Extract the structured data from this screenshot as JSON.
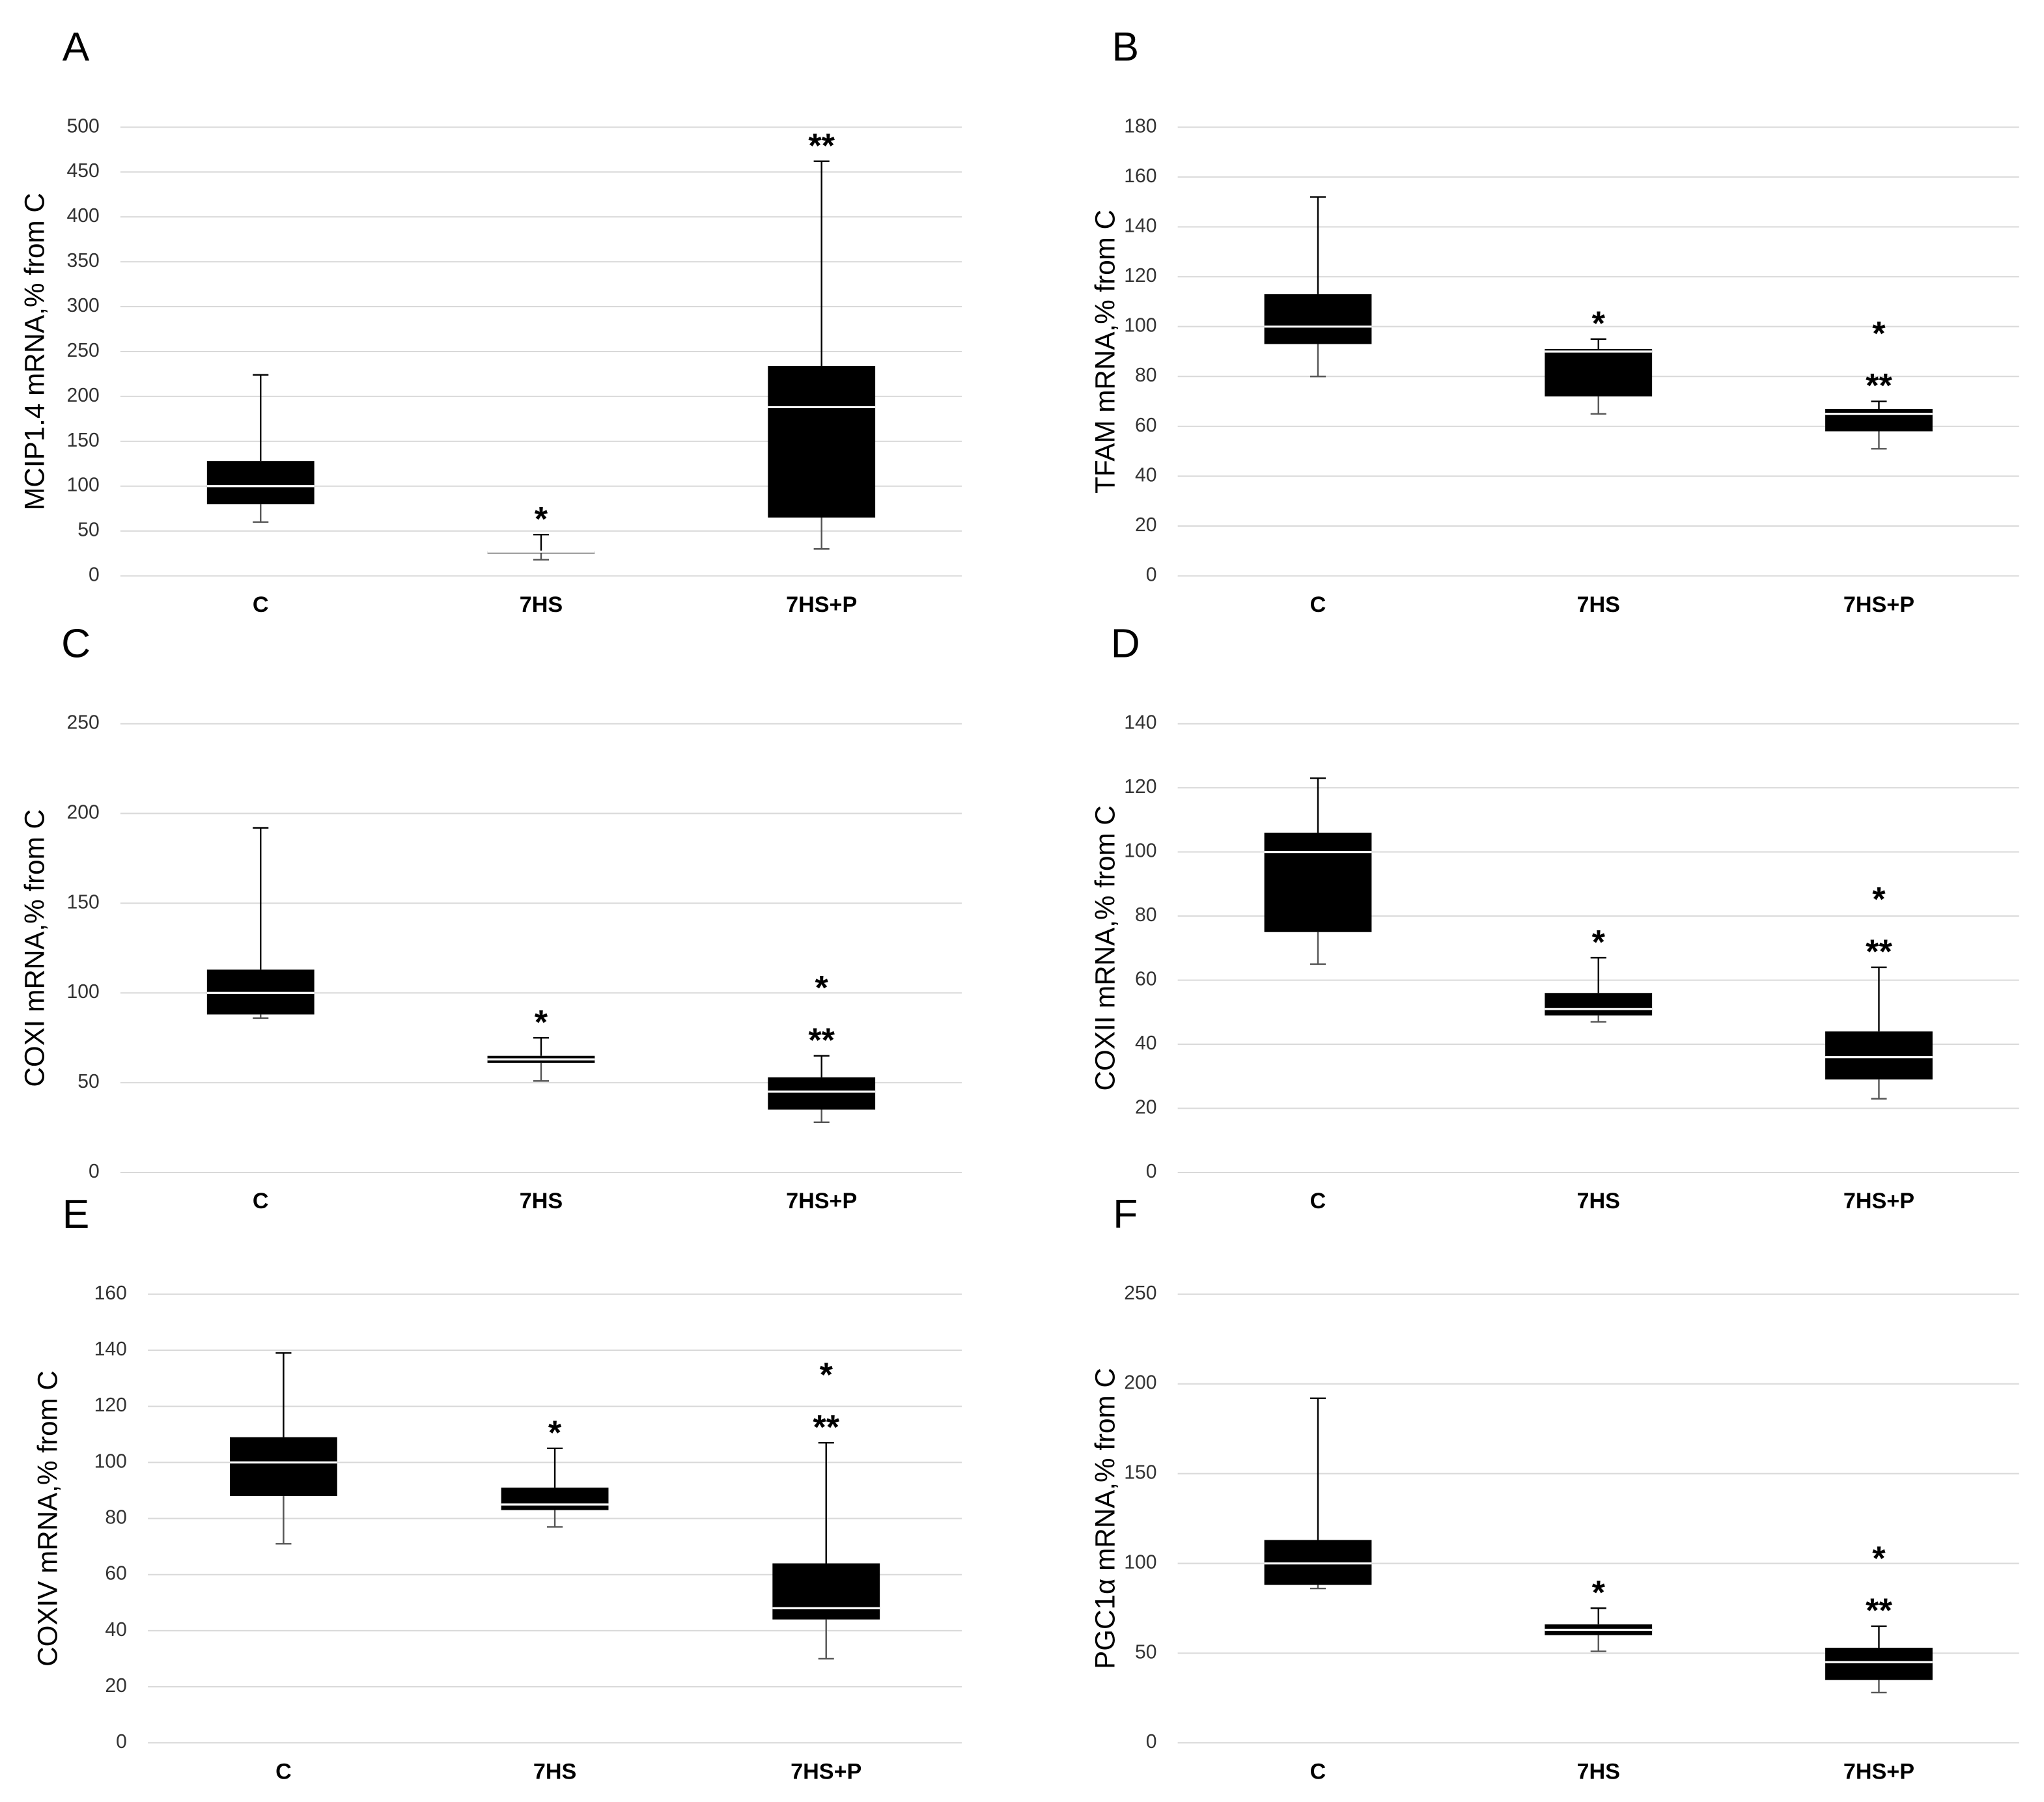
{
  "chart_data": [
    {
      "type": "box",
      "panel": "A",
      "ylabel": "MCIP1.4 mRNA,% from C",
      "categories": [
        "C",
        "7HS",
        "7HS+P"
      ],
      "boxes": [
        {
          "whislo": 60,
          "q1": 80,
          "med": 100,
          "q3": 128,
          "whishi": 224
        },
        {
          "whislo": 18,
          "q1": 25,
          "med": 27,
          "q3": 28,
          "whishi": 46
        },
        {
          "whislo": 30,
          "q1": 65,
          "med": 188,
          "q3": 234,
          "whishi": 462
        }
      ],
      "annotations": [
        [],
        [
          "*"
        ],
        [
          "**"
        ]
      ],
      "ylim": [
        0,
        500
      ],
      "yticks": [
        0,
        50,
        100,
        150,
        200,
        250,
        300,
        350,
        400,
        450,
        500
      ],
      "grid": true,
      "color": "#000000"
    },
    {
      "type": "box",
      "panel": "B",
      "ylabel": "TFAM mRNA,% from C",
      "categories": [
        "C",
        "7HS",
        "7HS+P"
      ],
      "boxes": [
        {
          "whislo": 80,
          "q1": 93,
          "med": 100,
          "q3": 113,
          "whishi": 152
        },
        {
          "whislo": 65,
          "q1": 72,
          "med": 90,
          "q3": 91,
          "whishi": 95
        },
        {
          "whislo": 51,
          "q1": 58,
          "med": 65,
          "q3": 67,
          "whishi": 70
        }
      ],
      "annotations": [
        [],
        [
          "*"
        ],
        [
          "*",
          "**"
        ]
      ],
      "ylim": [
        0,
        180
      ],
      "yticks": [
        0,
        20,
        40,
        60,
        80,
        100,
        120,
        140,
        160,
        180
      ],
      "grid": true,
      "color": "#000000"
    },
    {
      "type": "box",
      "panel": "C",
      "ylabel": "COXI mRNA,% from C",
      "categories": [
        "C",
        "7HS",
        "7HS+P"
      ],
      "boxes": [
        {
          "whislo": 86,
          "q1": 88,
          "med": 100,
          "q3": 113,
          "whishi": 192
        },
        {
          "whislo": 51,
          "q1": 61,
          "med": 63,
          "q3": 65,
          "whishi": 75
        },
        {
          "whislo": 28,
          "q1": 35,
          "med": 45,
          "q3": 53,
          "whishi": 65
        }
      ],
      "annotations": [
        [],
        [
          "*"
        ],
        [
          "*",
          "**"
        ]
      ],
      "ylim": [
        0,
        250
      ],
      "yticks": [
        0,
        50,
        100,
        150,
        200,
        250
      ],
      "grid": true,
      "color": "#000000"
    },
    {
      "type": "box",
      "panel": "D",
      "ylabel": "COXII mRNA,% from C",
      "categories": [
        "C",
        "7HS",
        "7HS+P"
      ],
      "boxes": [
        {
          "whislo": 65,
          "q1": 75,
          "med": 100,
          "q3": 106,
          "whishi": 123
        },
        {
          "whislo": 47,
          "q1": 49,
          "med": 51,
          "q3": 56,
          "whishi": 67
        },
        {
          "whislo": 23,
          "q1": 29,
          "med": 36,
          "q3": 44,
          "whishi": 64
        }
      ],
      "annotations": [
        [],
        [
          "*"
        ],
        [
          "*",
          "**"
        ]
      ],
      "ylim": [
        0,
        140
      ],
      "yticks": [
        0,
        20,
        40,
        60,
        80,
        100,
        120,
        140
      ],
      "grid": true,
      "color": "#000000"
    },
    {
      "type": "box",
      "panel": "E",
      "ylabel": "COXIV mRNA,% from C",
      "categories": [
        "C",
        "7HS",
        "7HS+P"
      ],
      "boxes": [
        {
          "whislo": 71,
          "q1": 88,
          "med": 100,
          "q3": 109,
          "whishi": 139
        },
        {
          "whislo": 77,
          "q1": 83,
          "med": 85,
          "q3": 91,
          "whishi": 105
        },
        {
          "whislo": 30,
          "q1": 44,
          "med": 48,
          "q3": 64,
          "whishi": 107
        }
      ],
      "annotations": [
        [],
        [
          "*"
        ],
        [
          "*",
          "**"
        ]
      ],
      "ylim": [
        0,
        160
      ],
      "yticks": [
        0,
        20,
        40,
        60,
        80,
        100,
        120,
        140,
        160
      ],
      "grid": true,
      "color": "#000000"
    },
    {
      "type": "box",
      "panel": "F",
      "ylabel": "PGC1α mRNA,% from C",
      "categories": [
        "C",
        "7HS",
        "7HS+P"
      ],
      "boxes": [
        {
          "whislo": 86,
          "q1": 88,
          "med": 100,
          "q3": 113,
          "whishi": 192
        },
        {
          "whislo": 51,
          "q1": 60,
          "med": 63,
          "q3": 66,
          "whishi": 75
        },
        {
          "whislo": 28,
          "q1": 35,
          "med": 45,
          "q3": 53,
          "whishi": 65
        }
      ],
      "annotations": [
        [],
        [
          "*"
        ],
        [
          "*",
          "**"
        ]
      ],
      "ylim": [
        0,
        250
      ],
      "yticks": [
        0,
        50,
        100,
        150,
        200,
        250
      ],
      "grid": true,
      "color": "#000000"
    }
  ]
}
